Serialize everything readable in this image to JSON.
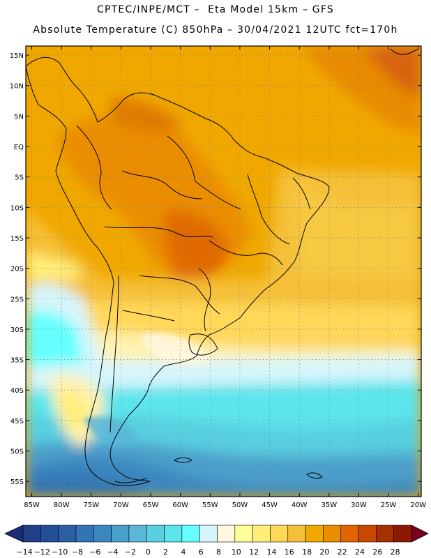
{
  "header": {
    "line1": "CPTEC/INPE/MCT –  Eta Model 15km – GFS",
    "line2": "Absolute Temperature (C) 850hPa – 30/04/2021 12UTC fct=170h"
  },
  "map": {
    "lat_labels": [
      "15N",
      "10N",
      "5N",
      "EQ",
      "5S",
      "10S",
      "15S",
      "20S",
      "25S",
      "30S",
      "35S",
      "40S",
      "45S",
      "50S",
      "55S"
    ],
    "lat_values": [
      15,
      10,
      5,
      0,
      -5,
      -10,
      -15,
      -20,
      -25,
      -30,
      -35,
      -40,
      -45,
      -50,
      -55
    ],
    "lon_labels": [
      "85W",
      "80W",
      "75W",
      "70W",
      "65W",
      "60W",
      "55W",
      "50W",
      "45W",
      "40W",
      "35W",
      "30W",
      "25W",
      "20W"
    ],
    "lon_values": [
      -85,
      -80,
      -75,
      -70,
      -65,
      -60,
      -55,
      -50,
      -45,
      -40,
      -35,
      -30,
      -25,
      -20
    ],
    "lat_range": [
      -57.5,
      16.5
    ],
    "lon_range": [
      -86,
      -19.5
    ]
  },
  "colorbar": {
    "labels": [
      "-14",
      "-12",
      "-10",
      "-8",
      "-6",
      "-4",
      "-2",
      "0",
      "2",
      "4",
      "6",
      "8",
      "10",
      "12",
      "14",
      "16",
      "18",
      "20",
      "22",
      "24",
      "26",
      "28"
    ],
    "colors": [
      "#1f3f87",
      "#244f98",
      "#2a5fa6",
      "#3374b4",
      "#3b87bf",
      "#4b9fcb",
      "#5ab7d8",
      "#59cfe0",
      "#5ce5ec",
      "#66ffff",
      "#d5f5fb",
      "#fff8e0",
      "#ffff99",
      "#ffef7a",
      "#ffd85a",
      "#f5c039",
      "#f0a800",
      "#eb8d00",
      "#e06400",
      "#c84800",
      "#a83000",
      "#8c1a00"
    ],
    "under_color": "#1a2f75",
    "over_color": "#7a0020"
  }
}
